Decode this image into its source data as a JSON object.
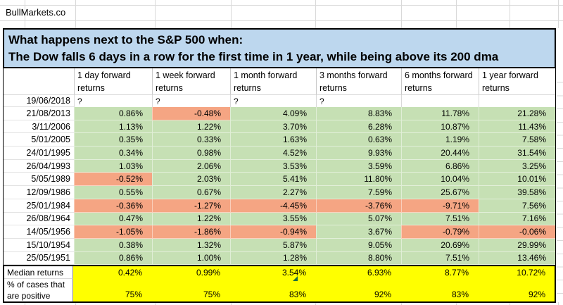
{
  "brand": "BullMarkets.co",
  "title": {
    "line1": "What happens next to the S&P 500 when:",
    "line2": "The Dow falls 6 days in a row for the first time in 1 year, while being above its 200 dma"
  },
  "table": {
    "corner_label": "",
    "columns": [
      "1 day forward returns",
      "1 week forward returns",
      "1 month forward returns",
      "3 months forward returns",
      "6 months forward returns",
      "1 year forward returns"
    ],
    "pending_row": {
      "date": "19/06/2018",
      "values": [
        "?",
        "?",
        "?",
        "?",
        "",
        ""
      ]
    },
    "rows": [
      {
        "date": "21/08/2013",
        "values": [
          "0.86%",
          "-0.48%",
          "4.09%",
          "8.83%",
          "11.78%",
          "21.28%"
        ]
      },
      {
        "date": "3/11/2006",
        "values": [
          "1.13%",
          "1.22%",
          "3.70%",
          "6.28%",
          "10.87%",
          "11.43%"
        ]
      },
      {
        "date": "5/01/2005",
        "values": [
          "0.35%",
          "0.33%",
          "1.63%",
          "0.63%",
          "1.19%",
          "7.58%"
        ]
      },
      {
        "date": "24/01/1995",
        "values": [
          "0.34%",
          "0.98%",
          "4.52%",
          "9.93%",
          "20.44%",
          "31.54%"
        ]
      },
      {
        "date": "26/04/1993",
        "values": [
          "1.03%",
          "2.06%",
          "3.53%",
          "3.59%",
          "6.86%",
          "3.25%"
        ]
      },
      {
        "date": "5/05/1989",
        "values": [
          "-0.52%",
          "2.03%",
          "5.41%",
          "11.80%",
          "10.04%",
          "10.01%"
        ]
      },
      {
        "date": "12/09/1986",
        "values": [
          "0.55%",
          "0.67%",
          "2.27%",
          "7.59%",
          "25.67%",
          "39.58%"
        ]
      },
      {
        "date": "25/01/1984",
        "values": [
          "-0.36%",
          "-1.27%",
          "-4.45%",
          "-3.76%",
          "-9.71%",
          "7.56%"
        ]
      },
      {
        "date": "26/08/1964",
        "values": [
          "0.47%",
          "1.22%",
          "3.55%",
          "5.07%",
          "7.51%",
          "7.16%"
        ]
      },
      {
        "date": "14/05/1956",
        "values": [
          "-1.05%",
          "-1.86%",
          "-0.94%",
          "3.67%",
          "-0.79%",
          "-0.06%"
        ]
      },
      {
        "date": "15/10/1954",
        "values": [
          "0.38%",
          "1.32%",
          "5.87%",
          "9.05%",
          "20.69%",
          "29.99%"
        ]
      },
      {
        "date": "25/05/1951",
        "values": [
          "0.86%",
          "1.00%",
          "1.28%",
          "8.80%",
          "7.51%",
          "13.46%"
        ]
      }
    ],
    "summary": {
      "median_label": "Median returns",
      "median_values": [
        "0.42%",
        "0.99%",
        "3.54%",
        "6.93%",
        "8.77%",
        "10.72%"
      ],
      "pct_label_lines": [
        "% of cases that",
        "are positive"
      ],
      "pct_values": [
        "75%",
        "75%",
        "83%",
        "92%",
        "83%",
        "92%"
      ]
    }
  },
  "colors": {
    "positive_bg": "#c6e0b4",
    "negative_bg": "#f5a583",
    "summary_bg": "#ffff00",
    "title_bg": "#bdd7ee",
    "marker_green": "#1d6f42"
  }
}
